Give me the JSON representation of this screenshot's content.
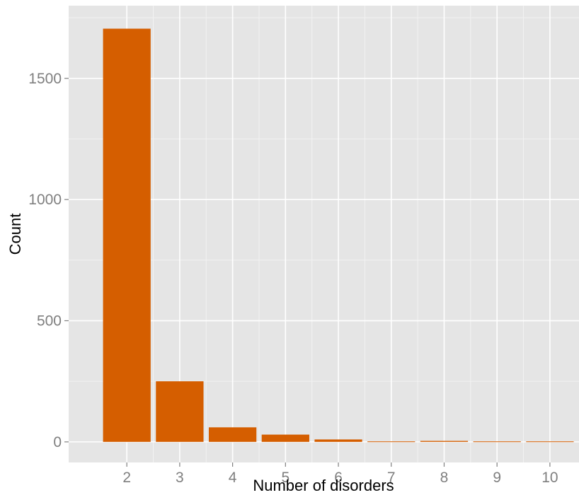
{
  "chart_data": {
    "type": "bar",
    "title": "",
    "xlabel": "Number of disorders",
    "ylabel": "Count",
    "x_tick_labels": [
      "2",
      "3",
      "4",
      "5",
      "6",
      "7",
      "8",
      "9",
      "10"
    ],
    "y_tick_labels": [
      "0",
      "500",
      "1000",
      "1500"
    ],
    "categories": [
      2,
      3,
      4,
      5,
      6,
      7,
      8,
      9,
      10
    ],
    "values": [
      1705,
      250,
      60,
      30,
      10,
      2,
      4,
      2,
      2
    ],
    "xlim": [
      0.9,
      10.55
    ],
    "ylim": [
      -85,
      1800
    ],
    "y_ticks": [
      0,
      500,
      1000,
      1500
    ],
    "grid": true,
    "legend": "none",
    "colors": {
      "bar": "#d55e00",
      "panel": "#e5e5e5",
      "grid_major": "#ffffff",
      "grid_minor": "#f2f2f2"
    }
  }
}
